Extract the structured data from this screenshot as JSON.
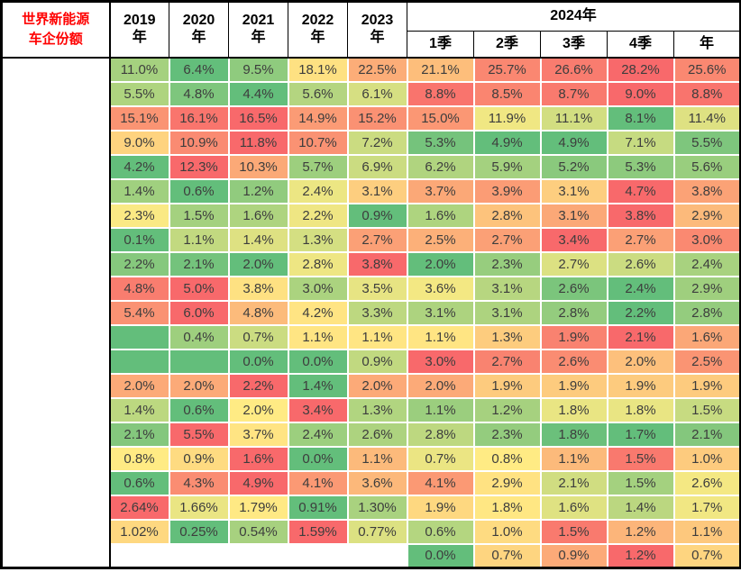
{
  "title": {
    "lines": [
      "世界新能源",
      "车企份额"
    ],
    "color": "#FF0000"
  },
  "header": {
    "years": [
      "2019年",
      "2020年",
      "2021年",
      "2022年",
      "2023年"
    ],
    "group_label": "2024年",
    "sub_columns": [
      "1季",
      "2季",
      "3季",
      "4季",
      "年"
    ]
  },
  "heat_colors": {
    "min": "#63BE7B",
    "mid": "#FFEB84",
    "max": "#F8696B"
  },
  "chart_data": {
    "type": "heatmap",
    "title": "世界新能源车企份额",
    "unit": "percent",
    "legend": "per-row color scale: green = row minimum, yellow = middle, red = row maximum; empty string = blank cell treated as zero (green fill), null = blank unfilled cell",
    "columns": [
      "2019年",
      "2020年",
      "2021年",
      "2022年",
      "2023年",
      "2024年1季",
      "2024年2季",
      "2024年3季",
      "2024年4季",
      "2024年"
    ],
    "rows": [
      [
        "11.0%",
        "6.4%",
        "9.5%",
        "18.1%",
        "22.5%",
        "21.1%",
        "25.7%",
        "26.6%",
        "28.2%",
        "25.6%"
      ],
      [
        "5.5%",
        "4.8%",
        "4.4%",
        "5.6%",
        "6.1%",
        "8.8%",
        "8.5%",
        "8.7%",
        "9.0%",
        "8.8%"
      ],
      [
        "15.1%",
        "16.1%",
        "16.5%",
        "14.9%",
        "15.2%",
        "15.0%",
        "11.9%",
        "11.1%",
        "8.1%",
        "11.4%"
      ],
      [
        "9.0%",
        "10.9%",
        "11.8%",
        "10.7%",
        "7.2%",
        "5.3%",
        "4.9%",
        "4.9%",
        "7.1%",
        "5.5%"
      ],
      [
        "4.2%",
        "12.3%",
        "10.3%",
        "5.7%",
        "6.9%",
        "6.2%",
        "5.9%",
        "5.2%",
        "5.3%",
        "5.6%"
      ],
      [
        "1.4%",
        "0.6%",
        "1.2%",
        "2.4%",
        "3.1%",
        "3.7%",
        "3.9%",
        "3.1%",
        "4.7%",
        "3.8%"
      ],
      [
        "2.3%",
        "1.5%",
        "1.6%",
        "2.2%",
        "0.9%",
        "1.6%",
        "2.8%",
        "3.1%",
        "3.8%",
        "2.9%"
      ],
      [
        "0.1%",
        "1.1%",
        "1.4%",
        "1.3%",
        "2.7%",
        "2.5%",
        "2.7%",
        "3.4%",
        "2.7%",
        "3.0%"
      ],
      [
        "2.2%",
        "2.1%",
        "2.0%",
        "2.8%",
        "3.8%",
        "2.0%",
        "2.3%",
        "2.7%",
        "2.6%",
        "2.4%"
      ],
      [
        "4.8%",
        "5.0%",
        "3.8%",
        "3.0%",
        "3.5%",
        "3.6%",
        "3.1%",
        "2.6%",
        "2.4%",
        "2.9%"
      ],
      [
        "5.4%",
        "6.0%",
        "4.8%",
        "4.2%",
        "3.3%",
        "3.1%",
        "3.1%",
        "2.8%",
        "2.2%",
        "2.8%"
      ],
      [
        "",
        "0.4%",
        "0.7%",
        "1.1%",
        "1.1%",
        "1.1%",
        "1.3%",
        "1.9%",
        "2.1%",
        "1.6%"
      ],
      [
        "",
        "",
        "0.0%",
        "0.0%",
        "0.9%",
        "3.0%",
        "2.7%",
        "2.6%",
        "2.0%",
        "2.5%"
      ],
      [
        "2.0%",
        "2.0%",
        "2.2%",
        "1.4%",
        "2.0%",
        "2.0%",
        "1.9%",
        "1.9%",
        "1.9%",
        "1.9%"
      ],
      [
        "1.4%",
        "0.6%",
        "2.0%",
        "3.4%",
        "1.3%",
        "1.1%",
        "1.2%",
        "1.8%",
        "1.8%",
        "1.5%"
      ],
      [
        "2.1%",
        "5.5%",
        "3.7%",
        "2.4%",
        "2.6%",
        "2.8%",
        "2.3%",
        "1.8%",
        "1.7%",
        "2.1%"
      ],
      [
        "0.8%",
        "0.9%",
        "1.6%",
        "0.0%",
        "1.1%",
        "0.7%",
        "0.8%",
        "1.1%",
        "1.5%",
        "1.0%"
      ],
      [
        "0.6%",
        "4.3%",
        "4.9%",
        "4.1%",
        "3.6%",
        "4.1%",
        "2.9%",
        "2.1%",
        "1.5%",
        "2.6%"
      ],
      [
        "2.64%",
        "1.66%",
        "1.79%",
        "0.91%",
        "1.30%",
        "1.9%",
        "1.8%",
        "1.6%",
        "1.4%",
        "1.7%"
      ],
      [
        "1.02%",
        "0.25%",
        "0.54%",
        "1.59%",
        "0.77%",
        "0.6%",
        "1.0%",
        "1.5%",
        "1.2%",
        "1.1%"
      ],
      [
        null,
        null,
        null,
        null,
        null,
        "0.0%",
        "0.7%",
        "0.9%",
        "1.2%",
        "0.7%"
      ]
    ]
  }
}
